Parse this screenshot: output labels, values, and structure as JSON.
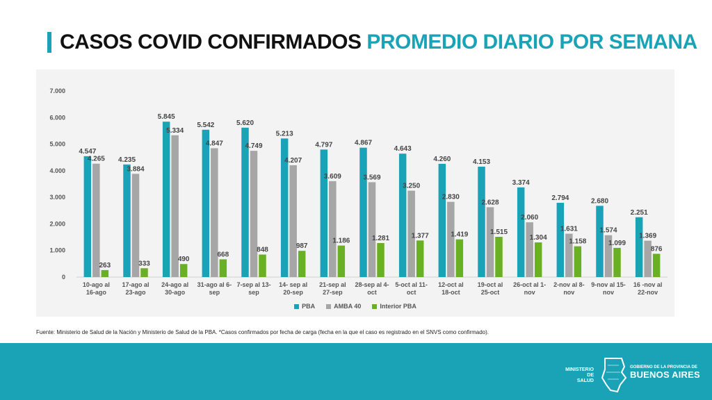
{
  "title": {
    "part1": "CASOS COVID CONFIRMADOS",
    "part2": "PROMEDIO DIARIO POR SEMANA"
  },
  "chart_data": {
    "type": "bar",
    "categories": [
      [
        "10-ago al",
        "16-ago"
      ],
      [
        "17-ago al",
        "23-ago"
      ],
      [
        "24-ago al",
        "30-ago"
      ],
      [
        "31-ago al 6-",
        "sep"
      ],
      [
        "7-sep al 13-",
        "sep"
      ],
      [
        "14- sep al",
        "20-sep"
      ],
      [
        "21-sep al",
        "27-sep"
      ],
      [
        "28-sep al 4-",
        "oct"
      ],
      [
        "5-oct al 11-",
        "oct"
      ],
      [
        "12-oct al",
        "18-oct"
      ],
      [
        "19-oct al",
        "25-oct"
      ],
      [
        "26-oct al 1-",
        "nov"
      ],
      [
        "2-nov al 8-",
        "nov"
      ],
      [
        "9-nov al 15-",
        "nov"
      ],
      [
        "16 -nov al",
        "22-nov"
      ]
    ],
    "series": [
      {
        "name": "PBA",
        "color": "#1aa3b6",
        "values": [
          4547,
          4235,
          5845,
          5542,
          5620,
          5213,
          4797,
          4867,
          4643,
          4260,
          4153,
          3374,
          2794,
          2680,
          2251
        ],
        "labels": [
          "4.547",
          "4.235",
          "5.845",
          "5.542",
          "5.620",
          "5.213",
          "4.797",
          "4.867",
          "4.643",
          "4.260",
          "4.153",
          "3.374",
          "2.794",
          "2.680",
          "2.251"
        ]
      },
      {
        "name": "AMBA 40",
        "color": "#a6a6a6",
        "values": [
          4265,
          3884,
          5334,
          4847,
          4749,
          4207,
          3609,
          3569,
          3250,
          2830,
          2628,
          2060,
          1631,
          1574,
          1369
        ],
        "labels": [
          "4.265",
          "3.884",
          "5.334",
          "4.847",
          "4.749",
          "4.207",
          "3.609",
          "3.569",
          "3.250",
          "2.830",
          "2.628",
          "2.060",
          "1.631",
          "1.574",
          "1.369"
        ]
      },
      {
        "name": "Interior PBA",
        "color": "#6ab023",
        "values": [
          263,
          333,
          490,
          668,
          848,
          987,
          1186,
          1281,
          1377,
          1419,
          1515,
          1304,
          1158,
          1099,
          876
        ],
        "labels": [
          "263",
          "333",
          "490",
          "668",
          "848",
          "987",
          "1.186",
          "1.281",
          "1.377",
          "1.419",
          "1.515",
          "1.304",
          "1.158",
          "1.099",
          "876"
        ]
      }
    ],
    "yticks": [
      0,
      1000,
      2000,
      3000,
      4000,
      5000,
      6000,
      7000
    ],
    "ytick_labels": [
      "0",
      "1.000",
      "2.000",
      "3.000",
      "4.000",
      "5.000",
      "6.000",
      "7.000"
    ],
    "ylim": [
      0,
      7000
    ],
    "legend_position": "bottom-center",
    "grid": false
  },
  "source": "Fuente: Ministerio de Salud de la Nación y Ministerio de Salud de la PBA. *Casos confirmados por fecha de carga (fecha en la que el caso es registrado en el SNVS como confirmado).",
  "footer": {
    "ministerio_line1": "MINISTERIO DE",
    "ministerio_line2": "SALUD",
    "gobierno_line": "GOBIERNO DE LA PROVINCIA DE",
    "province_name": "BUENOS AIRES",
    "logo_icon": "province-map-icon",
    "background_color": "#1aa3b6"
  }
}
